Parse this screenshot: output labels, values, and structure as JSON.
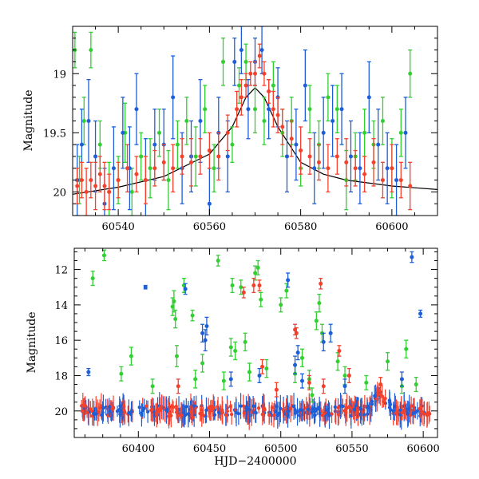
{
  "chart_data": [
    {
      "type": "scatter",
      "title": "",
      "xlabel": "",
      "ylabel": "Magnitude",
      "xlim": [
        60530,
        60610
      ],
      "ylim": [
        20.2,
        18.6
      ],
      "y_inverted": true,
      "x_ticks": [
        60540,
        60560,
        60580,
        60600
      ],
      "x_tick_labels": [
        "60540",
        "60560",
        "60580",
        "60600"
      ],
      "y_ticks": [
        19,
        19.5,
        20
      ],
      "y_tick_labels": [
        "19",
        "19.5",
        "20"
      ],
      "grid": false,
      "legend": "none",
      "model_curve": {
        "color": "#000000",
        "x": [
          60530,
          60540,
          60550,
          60560,
          60565,
          60568,
          60570,
          60572,
          60575,
          60580,
          60585,
          60590,
          60600,
          60610
        ],
        "y": [
          20.02,
          19.96,
          19.87,
          19.68,
          19.45,
          19.2,
          19.12,
          19.2,
          19.45,
          19.75,
          19.85,
          19.9,
          19.95,
          19.98
        ]
      },
      "series": [
        {
          "color": "#31cf31",
          "x": [
            60530.5,
            60531.5,
            60532.5,
            60534,
            60536,
            60538,
            60540,
            60541.5,
            60543,
            60545,
            60547,
            60549,
            60551,
            60553,
            60555,
            60557,
            60559,
            60561,
            60563,
            60565,
            60566.5,
            60568,
            60570,
            60572,
            60574,
            60576,
            60578,
            60580,
            60582,
            60584,
            60586,
            60588,
            60590,
            60592,
            60594,
            60596,
            60598,
            60600,
            60602,
            60604
          ],
          "y": [
            18.8,
            19.9,
            19.4,
            18.8,
            19.6,
            20.0,
            19.9,
            19.5,
            20.0,
            19.7,
            19.8,
            19.5,
            19.9,
            19.6,
            19.4,
            19.7,
            19.3,
            19.8,
            18.9,
            19.6,
            19.1,
            18.9,
            19.3,
            19.4,
            19.1,
            19.5,
            19.4,
            19.8,
            19.3,
            19.6,
            19.2,
            19.3,
            19.9,
            19.7,
            19.5,
            19.6,
            19.4,
            19.8,
            19.5,
            19.0
          ],
          "err": [
            0.15,
            0.2,
            0.2,
            0.15,
            0.2,
            0.25,
            0.2,
            0.25,
            0.2,
            0.2,
            0.25,
            0.2,
            0.25,
            0.2,
            0.2,
            0.25,
            0.2,
            0.2,
            0.2,
            0.15,
            0.15,
            0.15,
            0.2,
            0.2,
            0.2,
            0.2,
            0.2,
            0.15,
            0.2,
            0.2,
            0.2,
            0.2,
            0.25,
            0.2,
            0.2,
            0.2,
            0.2,
            0.25,
            0.2,
            0.2
          ]
        },
        {
          "color": "#1e5fd8",
          "x": [
            60531,
            60532,
            60533.5,
            60535,
            60537,
            60539,
            60541,
            60542.5,
            60544,
            60546,
            60548,
            60550,
            60552,
            60554,
            60556,
            60558,
            60560,
            60562,
            60564,
            60565.5,
            60567,
            60568.5,
            60570,
            60571.5,
            60573,
            60575,
            60577,
            60579,
            60581,
            60583,
            60585,
            60587,
            60589,
            60591,
            60593,
            60595,
            60597,
            60599,
            60601,
            60603
          ],
          "y": [
            19.9,
            19.6,
            19.4,
            19.7,
            20.1,
            19.8,
            19.5,
            19.8,
            19.3,
            19.9,
            19.6,
            19.6,
            19.2,
            19.8,
            19.7,
            19.4,
            20.1,
            19.5,
            19.7,
            18.9,
            18.8,
            19.3,
            18.9,
            18.8,
            19.3,
            19.2,
            19.7,
            19.6,
            19.1,
            19.8,
            19.5,
            19.4,
            19.3,
            19.7,
            19.8,
            19.2,
            19.6,
            19.8,
            19.9,
            19.5
          ],
          "err": [
            0.3,
            0.3,
            0.35,
            0.3,
            0.3,
            0.35,
            0.3,
            0.35,
            0.3,
            0.35,
            0.3,
            0.3,
            0.35,
            0.3,
            0.3,
            0.35,
            0.3,
            0.3,
            0.3,
            0.2,
            0.2,
            0.25,
            0.2,
            0.2,
            0.25,
            0.25,
            0.3,
            0.3,
            0.3,
            0.3,
            0.3,
            0.3,
            0.3,
            0.3,
            0.3,
            0.3,
            0.3,
            0.3,
            0.3,
            0.3
          ]
        },
        {
          "color": "#f5402c",
          "x": [
            60531,
            60532,
            60533,
            60534,
            60535,
            60536,
            60537,
            60538,
            60540,
            60542,
            60544,
            60546,
            60548,
            60550,
            60552,
            60554,
            60556,
            60558,
            60560,
            60562,
            60564,
            60566,
            60567,
            60568,
            60569,
            60570,
            60571,
            60572,
            60573,
            60574,
            60575,
            60576,
            60578,
            60580,
            60582,
            60584,
            60586,
            60588,
            60590,
            60592,
            60594,
            60596,
            60598,
            60600,
            60602,
            60604
          ],
          "y": [
            19.95,
            19.9,
            20.0,
            19.9,
            19.95,
            19.85,
            19.95,
            20.0,
            19.9,
            19.8,
            19.85,
            19.9,
            19.8,
            19.75,
            19.8,
            19.7,
            19.75,
            19.7,
            19.65,
            19.7,
            19.5,
            19.3,
            19.2,
            19.1,
            19.0,
            19.0,
            18.85,
            19.0,
            19.15,
            19.3,
            19.35,
            19.45,
            19.55,
            19.65,
            19.7,
            19.75,
            19.8,
            19.7,
            19.75,
            19.8,
            19.85,
            19.75,
            19.9,
            19.8,
            19.9,
            19.95
          ],
          "err": [
            0.15,
            0.15,
            0.2,
            0.15,
            0.2,
            0.15,
            0.2,
            0.15,
            0.15,
            0.2,
            0.15,
            0.2,
            0.15,
            0.15,
            0.2,
            0.15,
            0.2,
            0.15,
            0.15,
            0.2,
            0.15,
            0.15,
            0.15,
            0.1,
            0.1,
            0.1,
            0.1,
            0.1,
            0.1,
            0.15,
            0.15,
            0.15,
            0.15,
            0.2,
            0.15,
            0.15,
            0.2,
            0.15,
            0.2,
            0.15,
            0.15,
            0.2,
            0.15,
            0.2,
            0.15,
            0.2
          ]
        }
      ]
    },
    {
      "type": "scatter",
      "title": "",
      "xlabel": "HJD−2400000",
      "ylabel": "Magnitude",
      "xlim": [
        60355,
        60610
      ],
      "ylim": [
        21.5,
        10.8
      ],
      "y_inverted": true,
      "x_ticks": [
        60400,
        60450,
        60500,
        60550,
        60600
      ],
      "x_tick_labels": [
        "60400",
        "60450",
        "60500",
        "60550",
        "60600"
      ],
      "y_ticks": [
        12,
        14,
        16,
        18,
        20
      ],
      "y_tick_labels": [
        "12",
        "14",
        "16",
        "18",
        "20"
      ],
      "grid": false,
      "legend": "none",
      "series": [
        {
          "color": "#31cf31",
          "x": [
            60368,
            60376,
            60388,
            60395,
            60410,
            60424,
            60425,
            60426,
            60427,
            60432,
            60438,
            60440,
            60445,
            60456,
            60460,
            60465,
            60466,
            60468,
            60472,
            60475,
            60478,
            60482,
            60484,
            60486,
            60490,
            60500,
            60504,
            60510,
            60515,
            60520,
            60522,
            60525,
            60527,
            60529,
            60540,
            60545,
            60560,
            60575,
            60585,
            60588,
            60595
          ],
          "y": [
            12.5,
            11.2,
            17.9,
            16.9,
            18.6,
            14.1,
            13.8,
            14.8,
            16.9,
            12.9,
            14.6,
            18.2,
            17.3,
            11.5,
            18.3,
            16.4,
            12.9,
            16.6,
            13.0,
            16.1,
            17.8,
            12.2,
            11.9,
            13.7,
            17.6,
            14.0,
            13.2,
            17.9,
            17.0,
            18.2,
            19.1,
            14.9,
            13.9,
            15.6,
            17.2,
            18.0,
            18.4,
            17.2,
            18.6,
            16.5,
            18.5
          ],
          "err": [
            0.4,
            0.3,
            0.4,
            0.5,
            0.4,
            0.5,
            0.6,
            0.5,
            0.6,
            0.4,
            0.3,
            0.5,
            0.5,
            0.3,
            0.5,
            0.5,
            0.4,
            0.5,
            0.4,
            0.5,
            0.5,
            0.4,
            0.4,
            0.4,
            0.5,
            0.4,
            0.4,
            0.5,
            0.5,
            0.5,
            0.4,
            0.5,
            0.5,
            0.5,
            0.5,
            0.5,
            0.4,
            0.5,
            0.4,
            0.5,
            0.4
          ]
        },
        {
          "color": "#1e5fd8",
          "x": [
            60365,
            60405,
            60433,
            60445,
            60447,
            60448,
            60465,
            60485,
            60505,
            60510,
            60512,
            60515,
            60530,
            60535,
            60545,
            60585,
            60592,
            60598
          ],
          "y": [
            17.8,
            13.0,
            13.1,
            15.6,
            16.0,
            15.2,
            18.2,
            18.0,
            12.6,
            17.4,
            16.7,
            18.3,
            16.1,
            15.6,
            18.6,
            18.2,
            11.3,
            14.5
          ],
          "err": [
            0.2,
            0.1,
            0.3,
            0.5,
            0.6,
            0.5,
            0.4,
            0.4,
            0.4,
            0.5,
            0.4,
            0.4,
            0.5,
            0.5,
            0.4,
            0.4,
            0.3,
            0.2
          ]
        },
        {
          "color": "#f5402c",
          "x": [
            60428,
            60474,
            60481,
            60485,
            60487,
            60497,
            60510,
            60511,
            60520,
            60528,
            60530,
            60541,
            60548,
            60570
          ],
          "y": [
            18.6,
            13.3,
            12.9,
            12.9,
            17.5,
            18.8,
            15.4,
            15.6,
            18.4,
            12.8,
            18.6,
            16.6,
            18.0,
            18.5
          ],
          "err": [
            0.4,
            0.3,
            0.4,
            0.3,
            0.4,
            0.4,
            0.3,
            0.3,
            0.4,
            0.3,
            0.4,
            0.3,
            0.4,
            0.4
          ]
        }
      ],
      "baseline": {
        "x_range": [
          60360,
          60605
        ],
        "level": 20.0,
        "outburst": {
          "x_peak": 60570,
          "depth": 0.9,
          "width": 6
        },
        "colors": [
          "#1e5fd8",
          "#f5402c"
        ]
      }
    }
  ]
}
